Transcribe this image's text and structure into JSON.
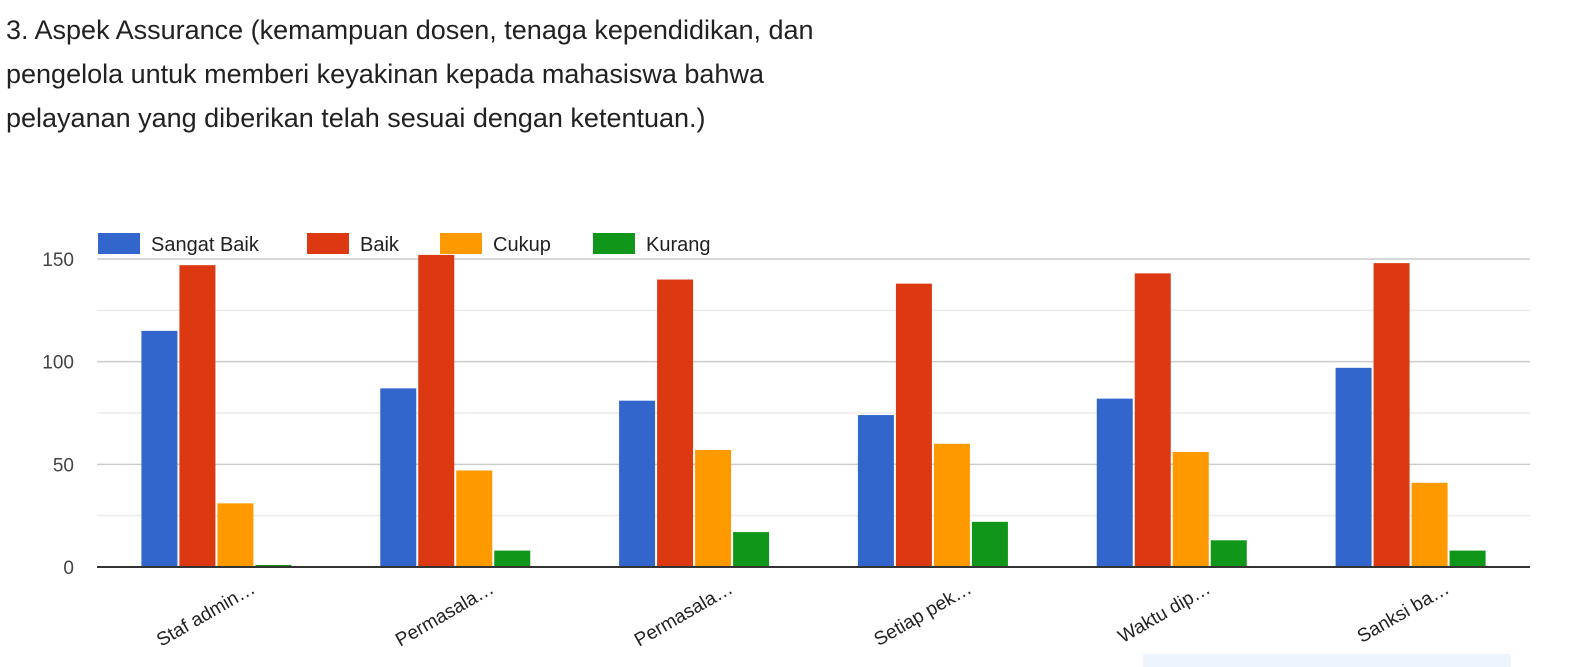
{
  "question": {
    "lines": [
      "3. Aspek Assurance (kemampuan dosen, tenaga kependidikan, dan",
      "pengelola untuk memberi keyakinan kepada mahasiswa bahwa",
      "pelayanan yang diberikan telah sesuai dengan ketentuan.)"
    ]
  },
  "chart_data": {
    "type": "bar",
    "title": "3. Aspek Assurance (kemampuan dosen, tenaga kependidikan, dan pengelola untuk memberi keyakinan kepada mahasiswa bahwa pelayanan yang diberikan telah sesuai dengan ketentuan.)",
    "xlabel": "",
    "ylabel": "",
    "categories": [
      "Staf admin…",
      "Permasala…",
      "Permasala…",
      "Setiap pek…",
      "Waktu dip…",
      "Sanksi ba…"
    ],
    "series": [
      {
        "name": "Sangat Baik",
        "color": "#3366cc",
        "values": [
          115,
          87,
          81,
          74,
          82,
          97
        ]
      },
      {
        "name": "Baik",
        "color": "#dc3912",
        "values": [
          147,
          152,
          140,
          138,
          143,
          148
        ]
      },
      {
        "name": "Cukup",
        "color": "#ff9900",
        "values": [
          31,
          47,
          57,
          60,
          56,
          41
        ]
      },
      {
        "name": "Kurang",
        "color": "#109618",
        "values": [
          1,
          8,
          17,
          22,
          13,
          8
        ]
      }
    ],
    "ylim": [
      0,
      150
    ],
    "yticks": [
      0,
      50,
      100,
      150
    ],
    "grid": true,
    "legend_position": "top-left"
  }
}
